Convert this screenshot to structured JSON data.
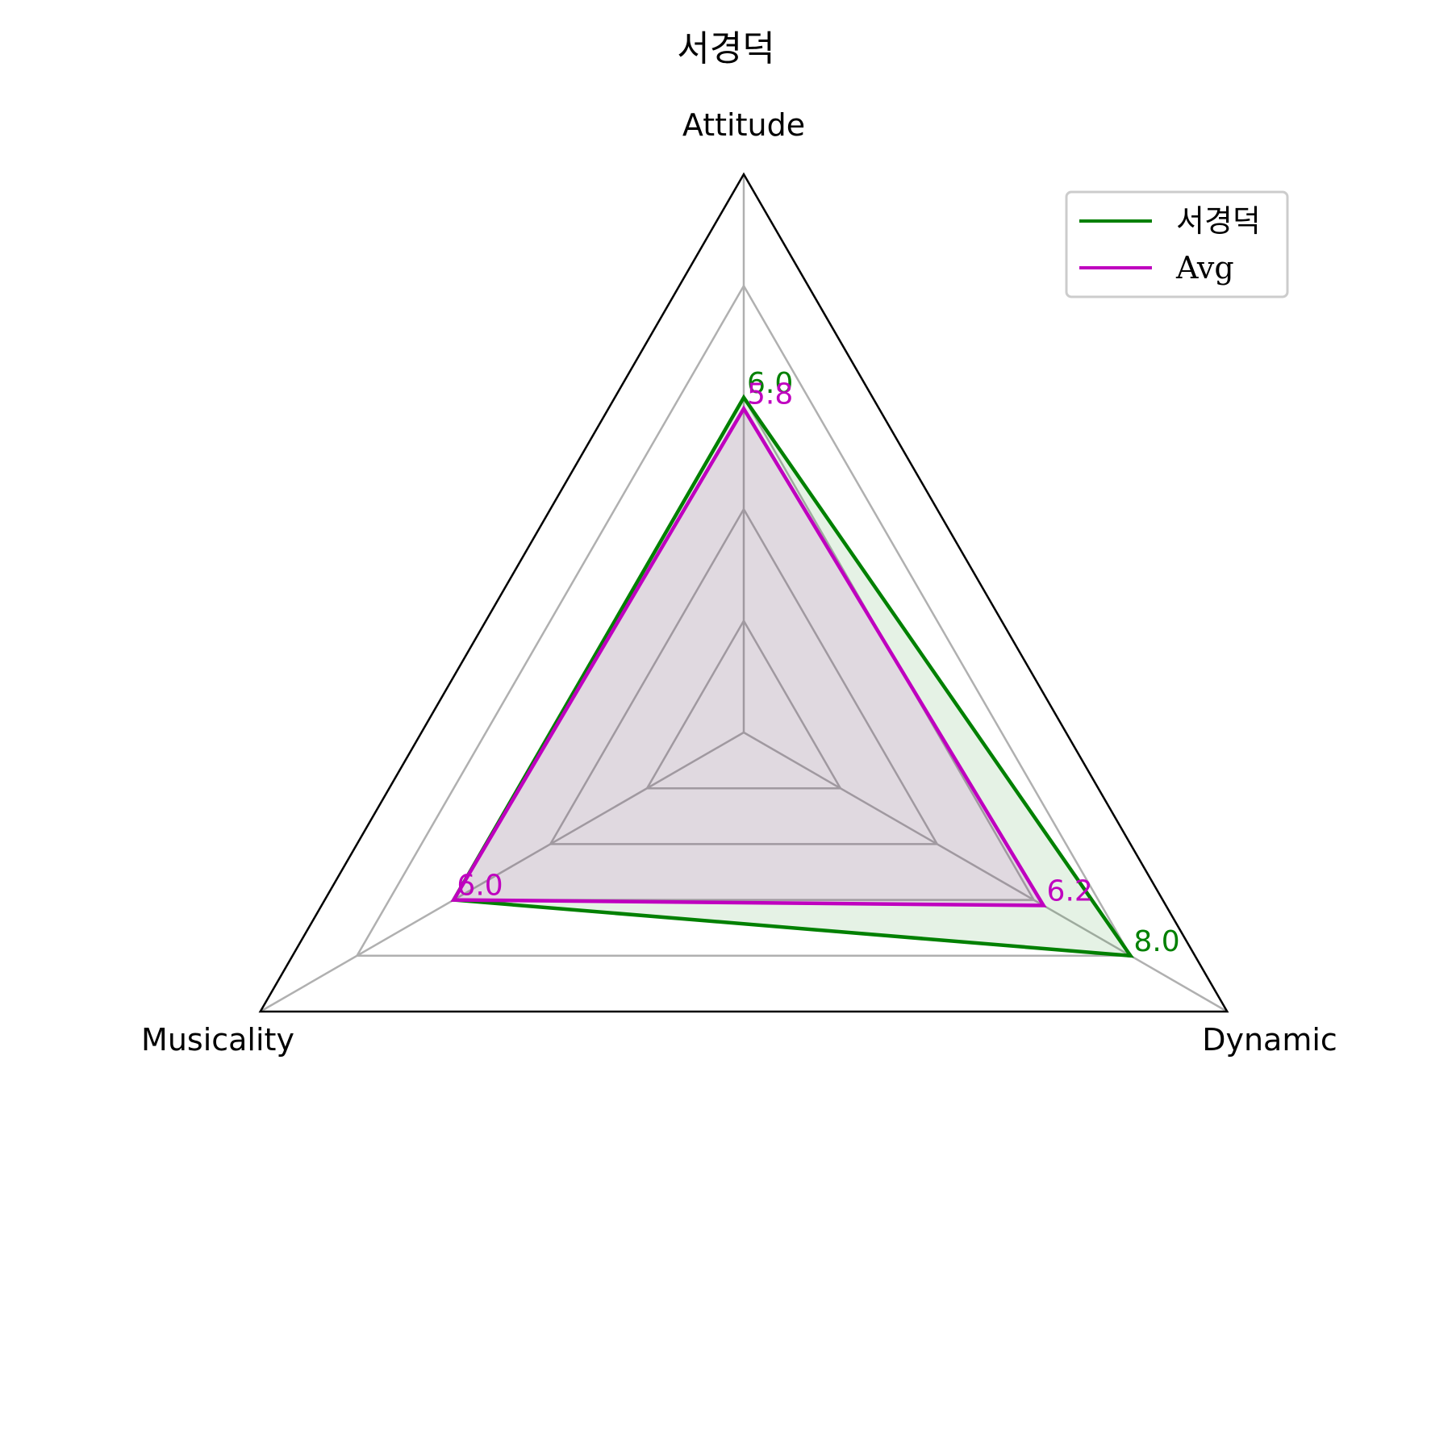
{
  "chart_data": {
    "type": "radar",
    "title": "서경덕",
    "axes": [
      "Attitude",
      "Dynamic",
      "Musicality"
    ],
    "rmax": 10,
    "gridlines": [
      2,
      4,
      6,
      8
    ],
    "series": [
      {
        "name": "서경덕",
        "values": [
          6.0,
          8.0,
          6.0
        ],
        "color": "#008000",
        "labels": [
          "6.0",
          "8.0",
          ""
        ]
      },
      {
        "name": "Avg",
        "values": [
          5.8,
          6.2,
          6.0
        ],
        "color": "#bf00bf",
        "labels": [
          "5.8",
          "6.2",
          "6.0"
        ]
      }
    ],
    "legend_position": "top-right",
    "grid_color": "#b0b0b0",
    "frame_color": "#000000"
  }
}
